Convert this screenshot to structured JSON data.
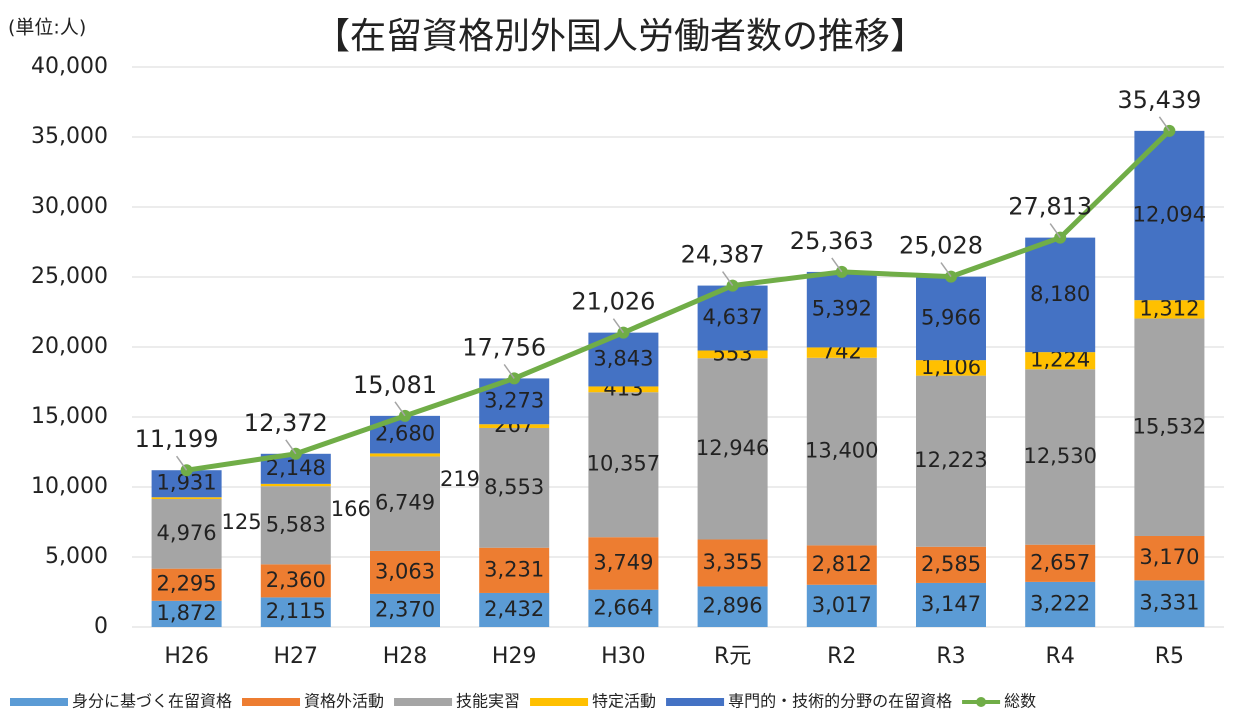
{
  "chart_data": {
    "type": "bar",
    "stacked": true,
    "title": "【在留資格別外国人労働者数の推移】",
    "unit_label": "(単位:人)",
    "categories": [
      "H26",
      "H27",
      "H28",
      "H29",
      "H30",
      "R元",
      "R2",
      "R3",
      "R4",
      "R5"
    ],
    "ylim": [
      0,
      40000
    ],
    "yticks": [
      0,
      {
        "value": 5000,
        "label": "5,000"
      },
      {
        "value": 10000,
        "label": "10,000"
      },
      {
        "value": 15000,
        "label": "15,000"
      },
      {
        "value": 20000,
        "label": "20,000"
      },
      {
        "value": 25000,
        "label": "25,000"
      },
      {
        "value": 30000,
        "label": "30,000"
      },
      {
        "value": 35000,
        "label": "35,000"
      },
      {
        "value": 40000,
        "label": "40,000"
      }
    ],
    "grid": true,
    "legend": "bottom",
    "series": [
      {
        "name": "身分に基づく在留資格",
        "color": "#5b9bd5",
        "values": [
          1872,
          2115,
          2370,
          2432,
          2664,
          2896,
          3017,
          3147,
          3222,
          3331
        ],
        "value_labels": [
          "1,872",
          "2,115",
          "2,370",
          "2,432",
          "2,664",
          "2,896",
          "3,017",
          "3,147",
          "3,222",
          "3,331"
        ]
      },
      {
        "name": "資格外活動",
        "color": "#ed7d31",
        "values": [
          2295,
          2360,
          3063,
          3231,
          3749,
          3355,
          2812,
          2585,
          2657,
          3170
        ],
        "value_labels": [
          "2,295",
          "2,360",
          "3,063",
          "3,231",
          "3,749",
          "3,355",
          "2,812",
          "2,585",
          "2,657",
          "3,170"
        ]
      },
      {
        "name": "技能実習",
        "color": "#a5a5a5",
        "values": [
          4976,
          5583,
          6749,
          8553,
          10357,
          12946,
          13400,
          12223,
          12530,
          15532
        ],
        "value_labels": [
          "4,976",
          "5,583",
          "6,749",
          "8,553",
          "10,357",
          "12,946",
          "13,400",
          "12,223",
          "12,530",
          "15,532"
        ]
      },
      {
        "name": "特定活動",
        "color": "#ffc000",
        "values": [
          125,
          166,
          219,
          267,
          413,
          553,
          742,
          1106,
          1224,
          1312
        ],
        "value_labels": [
          "125",
          "166",
          "219",
          "267",
          "413",
          "553",
          "742",
          "1,106",
          "1,224",
          "1,312"
        ]
      },
      {
        "name": "専門的・技術的分野の在留資格",
        "color": "#4472c4",
        "values": [
          1931,
          2148,
          2680,
          3273,
          3843,
          4637,
          5392,
          5966,
          8180,
          12094
        ],
        "value_labels": [
          "1,931",
          "2,148",
          "2,680",
          "3,273",
          "3,843",
          "4,637",
          "5,392",
          "5,966",
          "8,180",
          "12,094"
        ]
      },
      {
        "name": "総数",
        "type": "line",
        "color": "#70ad47",
        "values": [
          11199,
          12372,
          15081,
          17756,
          21026,
          24387,
          25363,
          25028,
          27813,
          35439
        ],
        "value_labels": [
          "11,199",
          "12,372",
          "15,081",
          "17,756",
          "21,026",
          "24,387",
          "25,363",
          "25,028",
          "27,813",
          "35,439"
        ]
      }
    ]
  }
}
